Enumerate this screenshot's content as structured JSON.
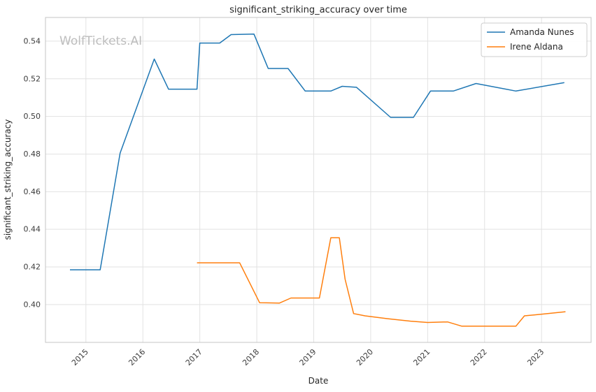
{
  "chart_data": {
    "type": "line",
    "title": "significant_striking_accuracy over time",
    "xlabel": "Date",
    "ylabel": "significant_striking_accuracy",
    "watermark": "WolfTickets.AI",
    "legend_position": "upper right",
    "grid": true,
    "xlim": [
      2014.29,
      2023.87
    ],
    "ylim": [
      0.3799,
      0.5526
    ],
    "xticks": [
      2015,
      2016,
      2017,
      2018,
      2019,
      2020,
      2021,
      2022,
      2023
    ],
    "yticks": [
      0.4,
      0.42,
      0.44,
      0.46,
      0.48,
      0.5,
      0.52,
      0.54
    ],
    "series": [
      {
        "name": "Amanda Nunes",
        "color": "#1f77b4",
        "points": [
          [
            2014.72,
            0.4185
          ],
          [
            2015.25,
            0.4185
          ],
          [
            2015.6,
            0.4805
          ],
          [
            2016.2,
            0.5305
          ],
          [
            2016.45,
            0.5145
          ],
          [
            2016.95,
            0.5145
          ],
          [
            2017.0,
            0.539
          ],
          [
            2017.35,
            0.539
          ],
          [
            2017.55,
            0.5435
          ],
          [
            2017.95,
            0.5438
          ],
          [
            2018.2,
            0.5255
          ],
          [
            2018.55,
            0.5255
          ],
          [
            2018.85,
            0.5135
          ],
          [
            2019.3,
            0.5135
          ],
          [
            2019.5,
            0.516
          ],
          [
            2019.75,
            0.5155
          ],
          [
            2020.35,
            0.4995
          ],
          [
            2020.75,
            0.4995
          ],
          [
            2021.05,
            0.5135
          ],
          [
            2021.45,
            0.5135
          ],
          [
            2021.85,
            0.5175
          ],
          [
            2022.55,
            0.5135
          ],
          [
            2023.4,
            0.518
          ]
        ]
      },
      {
        "name": "Irene Aldana",
        "color": "#ff7f0e",
        "points": [
          [
            2016.95,
            0.4222
          ],
          [
            2017.7,
            0.4222
          ],
          [
            2018.05,
            0.401
          ],
          [
            2018.4,
            0.4008
          ],
          [
            2018.6,
            0.4035
          ],
          [
            2019.1,
            0.4035
          ],
          [
            2019.3,
            0.4355
          ],
          [
            2019.45,
            0.4355
          ],
          [
            2019.55,
            0.4135
          ],
          [
            2019.7,
            0.3952
          ],
          [
            2019.9,
            0.394
          ],
          [
            2020.3,
            0.3925
          ],
          [
            2020.7,
            0.3912
          ],
          [
            2021.0,
            0.3905
          ],
          [
            2021.35,
            0.3908
          ],
          [
            2021.6,
            0.3885
          ],
          [
            2022.55,
            0.3885
          ],
          [
            2022.7,
            0.394
          ],
          [
            2023.05,
            0.395
          ],
          [
            2023.42,
            0.3962
          ]
        ]
      }
    ]
  }
}
